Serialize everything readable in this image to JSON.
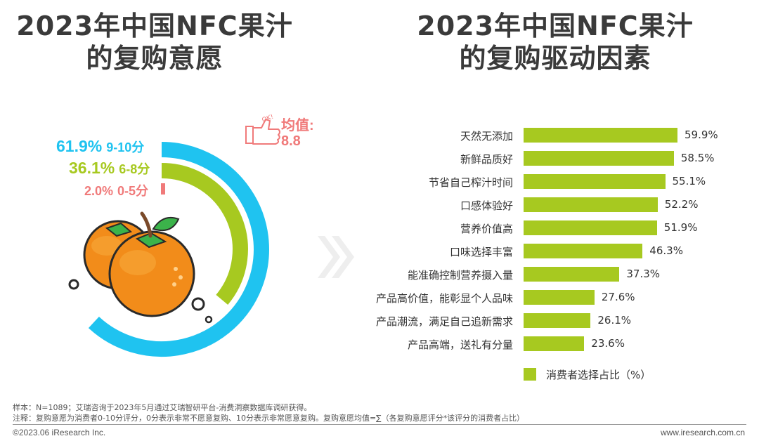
{
  "left_title": {
    "line1": "2023年中国NFC果汁",
    "line2": "的复购意愿"
  },
  "right_title": {
    "line1": "2023年中国NFC果汁",
    "line2": "的复购驱动因素"
  },
  "repurchase": {
    "segments": [
      {
        "pct": "61.9%",
        "range": "9-10分",
        "value": 61.9,
        "color": "#1fc3f0"
      },
      {
        "pct": "36.1%",
        "range": "6-8分",
        "value": 36.1,
        "color": "#a7c920"
      },
      {
        "pct": "2.0%",
        "range": "0-5分",
        "value": 2.0,
        "color": "#f07a7a"
      }
    ],
    "avg_label": "均值:",
    "avg_value": "8.8",
    "ok_text": "OK!"
  },
  "chart_data": {
    "type": "bar",
    "orientation": "horizontal",
    "categories": [
      "天然无添加",
      "新鲜品质好",
      "节省自己榨汁时间",
      "口感体验好",
      "营养价值高",
      "口味选择丰富",
      "能准确控制营养摄入量",
      "产品高价值，能彰显个人品味",
      "产品潮流，满足自己追新需求",
      "产品高端，送礼有分量"
    ],
    "values": [
      59.9,
      58.5,
      55.1,
      52.2,
      51.9,
      46.3,
      37.3,
      27.6,
      26.1,
      23.6
    ],
    "value_labels": [
      "59.9%",
      "58.5%",
      "55.1%",
      "52.2%",
      "51.9%",
      "46.3%",
      "37.3%",
      "27.6%",
      "26.1%",
      "23.6%"
    ],
    "series": [
      {
        "name": "消费者选择占比（%）",
        "color": "#a7c920"
      }
    ],
    "legend_position": "bottom-left"
  },
  "notes": {
    "sample": "样本：N=1089；艾瑞咨询于2023年5月通过艾瑞智研平台-消费洞察数据库调研获得。",
    "note": "注释：复购意愿为消费者0-10分评分，0分表示非常不愿意复购、10分表示非常愿意复购。复购意愿均值=∑（各复购意愿评分*该评分的消费者占比）"
  },
  "footer": {
    "copyright": "©2023.06 iResearch Inc.",
    "website": "www.iresearch.com.cn"
  }
}
